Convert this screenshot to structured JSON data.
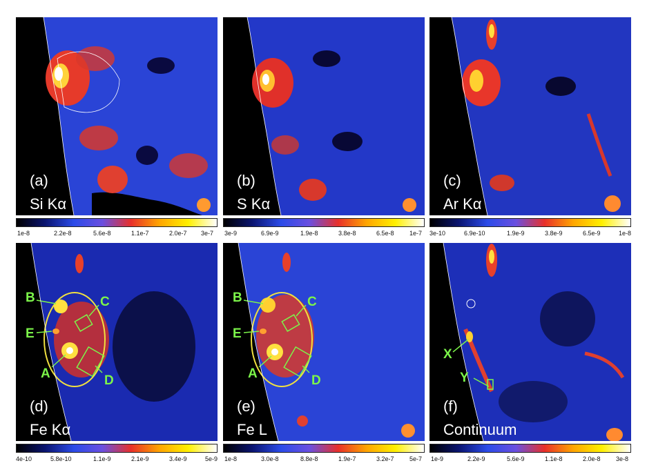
{
  "panels": [
    {
      "letter": "(a)",
      "line": "Si Kα",
      "ticks": [
        "1e-8",
        "2.2e-8",
        "5.6e-8",
        "1.1e-7",
        "2.0e-7",
        "3e-7"
      ]
    },
    {
      "letter": "(b)",
      "line": "S Kα",
      "ticks": [
        "3e-9",
        "6.9e-9",
        "1.9e-8",
        "3.8e-8",
        "6.5e-8",
        "1e-7"
      ]
    },
    {
      "letter": "(c)",
      "line": "Ar Kα",
      "ticks": [
        "3e-10",
        "6.9e-10",
        "1.9e-9",
        "3.8e-9",
        "6.5e-9",
        "1e-8"
      ]
    },
    {
      "letter": "(d)",
      "line": "Fe Kα",
      "ticks": [
        "4e-10",
        "5.8e-10",
        "1.1e-9",
        "2.1e-9",
        "3.4e-9",
        "5e-9"
      ]
    },
    {
      "letter": "(e)",
      "line": "Fe L",
      "ticks": [
        "1e-8",
        "3.0e-8",
        "8.8e-8",
        "1.9e-7",
        "3.2e-7",
        "5e-7"
      ]
    },
    {
      "letter": "(f)",
      "line": "Continuum",
      "ticks": [
        "1e-9",
        "2.2e-9",
        "5.6e-9",
        "1.1e-8",
        "2.0e-8",
        "3e-8"
      ]
    }
  ],
  "region_labels": {
    "A": "A",
    "B": "B",
    "C": "C",
    "D": "D",
    "E": "E",
    "X": "X",
    "Y": "Y"
  },
  "colors": {
    "background": "#000000",
    "colormap": [
      "#000000",
      "#0a1470",
      "#2b4be8",
      "#6a4fe0",
      "#e8302a",
      "#ffa500",
      "#fff000",
      "#ffffff"
    ],
    "region_label": "#7cf54a",
    "ellipse": "#f0e040",
    "contour": "#ffffff"
  }
}
